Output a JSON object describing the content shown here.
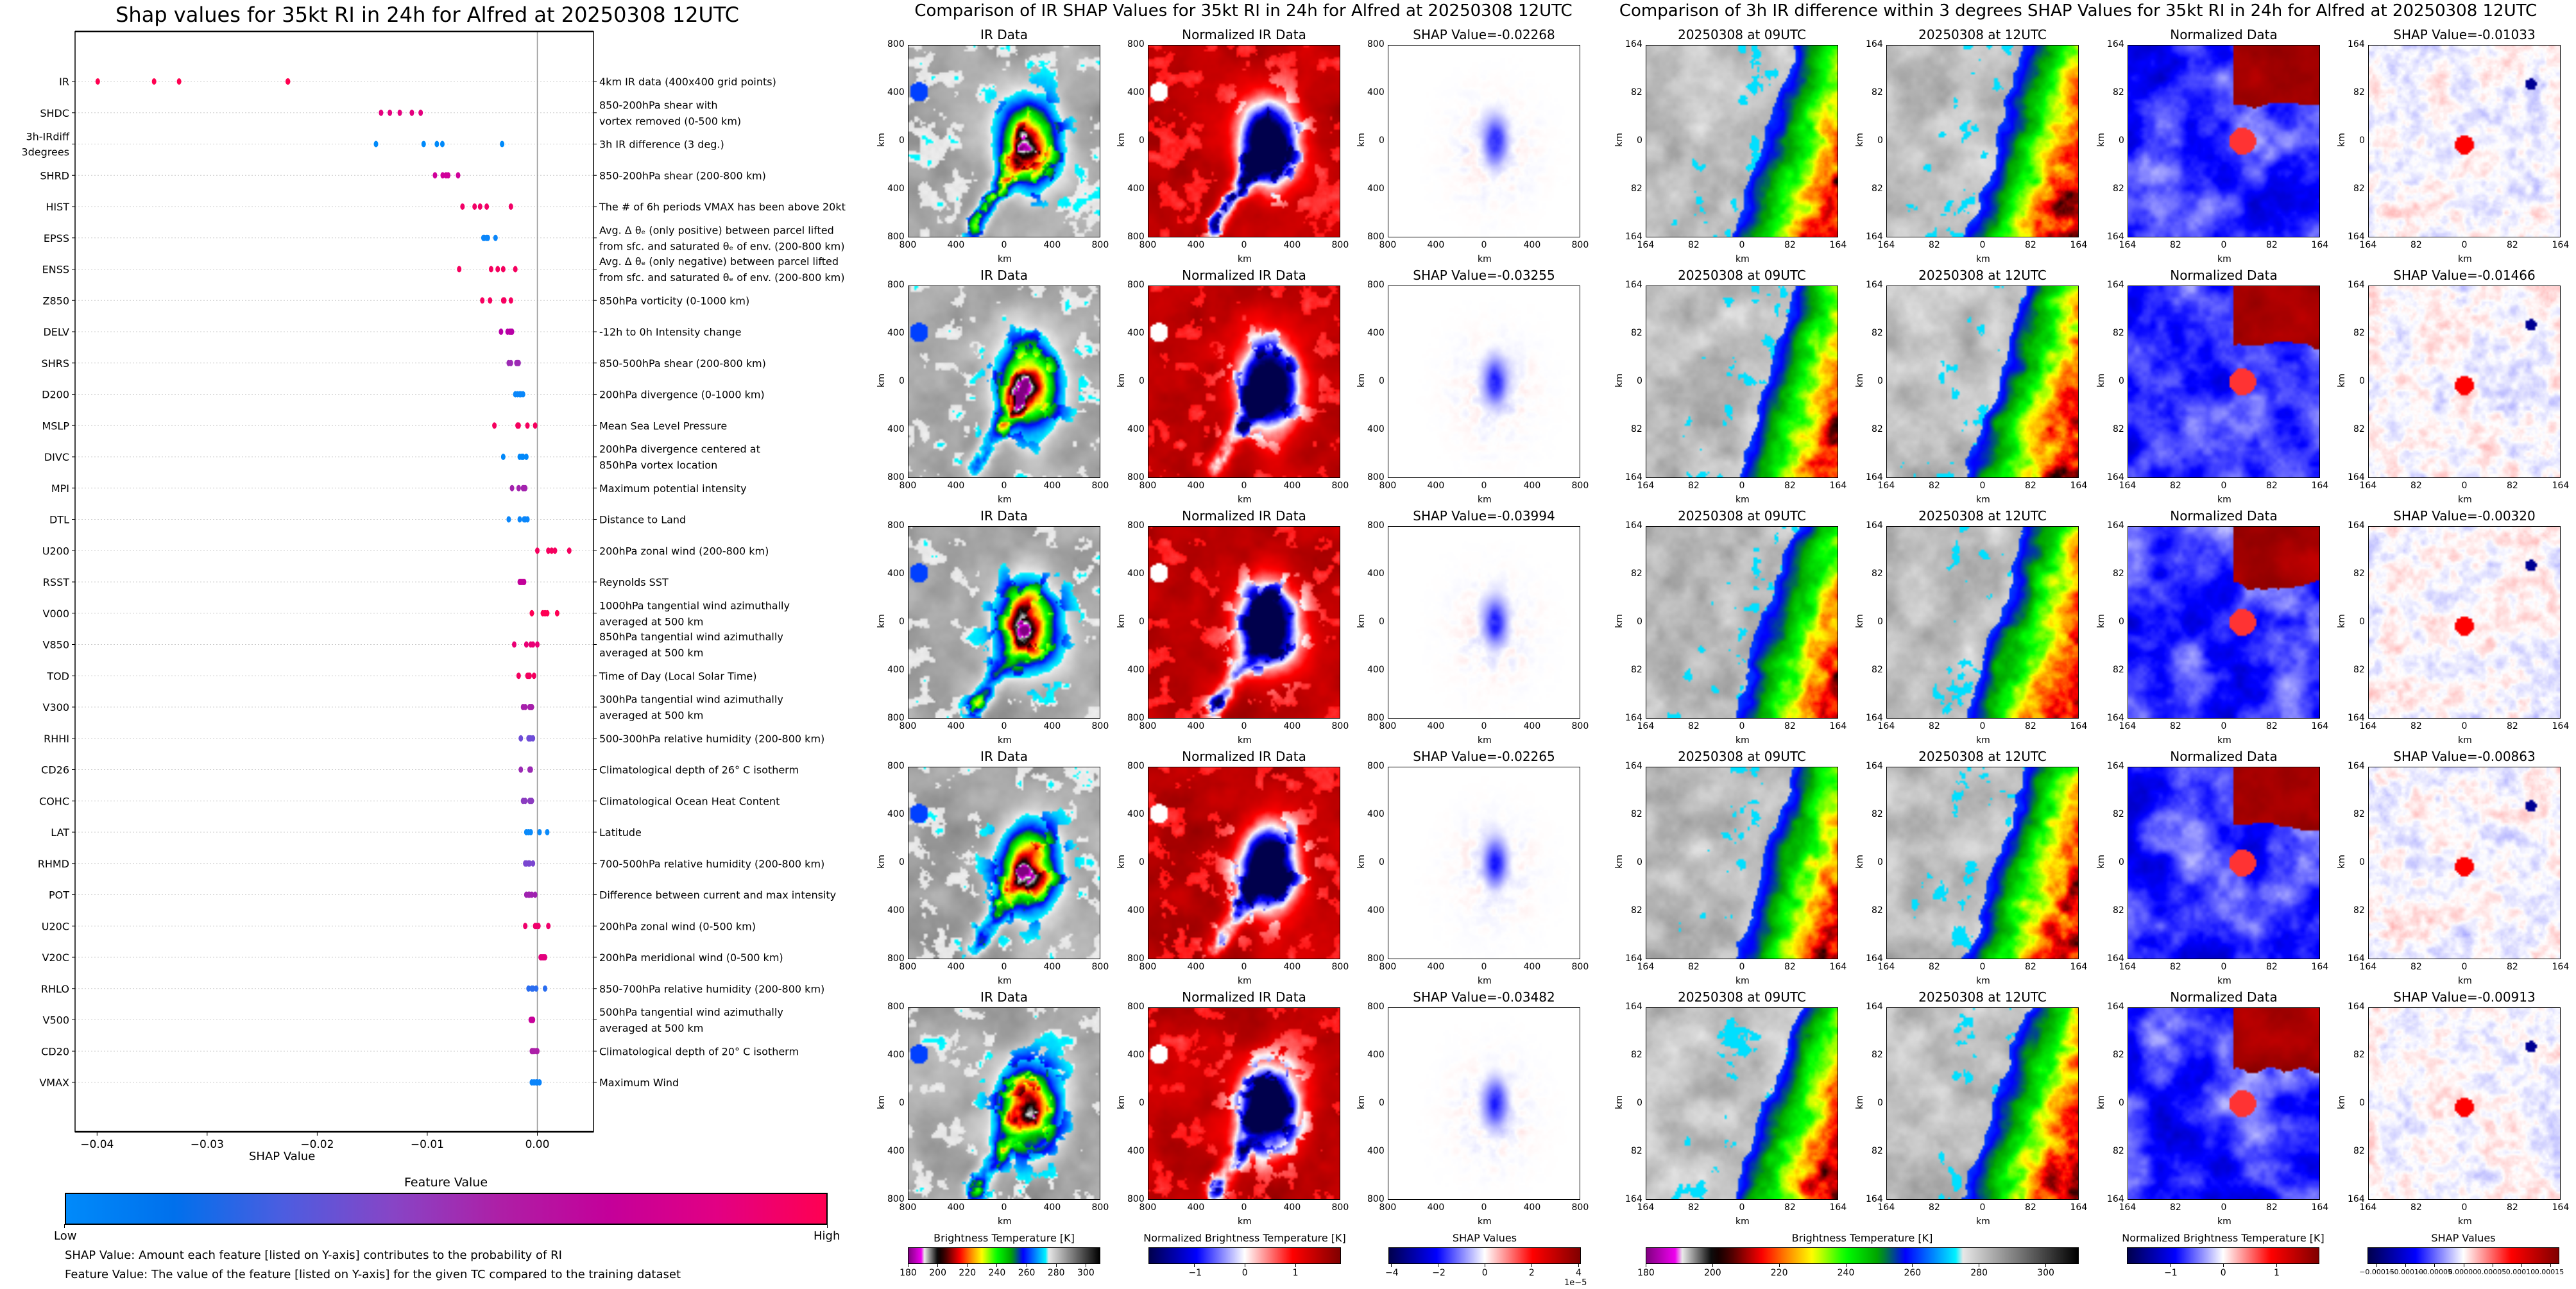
{
  "chart_data": {
    "type": "scatter",
    "title": "Shap values for 35kt RI in 24h for Alfred at 20250308 12UTC",
    "xlabel": "SHAP Value",
    "xlim": [
      -0.042,
      0.0051
    ],
    "xticks": [
      -0.04,
      -0.03,
      -0.02,
      -0.01,
      0.0
    ],
    "xtick_labels": [
      "−0.04",
      "−0.03",
      "−0.02",
      "−0.01",
      "0.00"
    ],
    "zero_line": 0.0,
    "grid": "dotted horizontal per feature",
    "features": [
      {
        "name": "IR",
        "description": [
          "4km IR data (400x400 grid points)"
        ],
        "color": "#ff0050",
        "shap_values": [
          -0.02268,
          -0.03255,
          -0.03994,
          -0.02265,
          -0.03482
        ]
      },
      {
        "name": "SHDC",
        "description": [
          "850-200hPa shear with",
          "vortex removed (0-500 km)"
        ],
        "color": "#e4007e",
        "shap_values": [
          -0.0142,
          -0.0134,
          -0.0125,
          -0.0114,
          -0.0106
        ]
      },
      {
        "name": "3h-IRdiff\n3degrees",
        "description": [
          "3h IR difference (3 deg.)"
        ],
        "color": "#008afa",
        "shap_values": [
          -0.01466,
          -0.01033,
          -0.00913,
          -0.00863,
          -0.0032
        ]
      },
      {
        "name": "SHRD",
        "description": [
          "850-200hPa shear (200-800 km)"
        ],
        "color": "#d0009a",
        "shap_values": [
          -0.0093,
          -0.0086,
          -0.0083,
          -0.0081,
          -0.0072
        ]
      },
      {
        "name": "HIST",
        "description": [
          "The # of 6h periods VMAX has been above 20kt"
        ],
        "color": "#f20066",
        "shap_values": [
          -0.0068,
          -0.0057,
          -0.0052,
          -0.0046,
          -0.0024
        ]
      },
      {
        "name": "EPSS",
        "description": [
          "Avg. Δ θₑ (only positive) between parcel lifted",
          "from sfc. and saturated θₑ of env. (200-800 km)"
        ],
        "color": "#0a86fa",
        "shap_values": [
          -0.0049,
          -0.0048,
          -0.0046,
          -0.0045,
          -0.0038
        ]
      },
      {
        "name": "ENSS",
        "description": [
          "Avg. Δ θₑ (only negative) between parcel lifted",
          "from sfc. and saturated θₑ of env. (200-800 km)"
        ],
        "color": "#f5005e",
        "shap_values": [
          -0.0071,
          -0.0042,
          -0.0036,
          -0.0031,
          -0.002
        ]
      },
      {
        "name": "Z850",
        "description": [
          "850hPa vorticity (0-1000 km)"
        ],
        "color": "#f70060",
        "shap_values": [
          -0.005,
          -0.0043,
          -0.0031,
          -0.003,
          -0.0024
        ]
      },
      {
        "name": "DELV",
        "description": [
          "-12h to 0h Intensity change"
        ],
        "color": "#b800a6",
        "shap_values": [
          -0.0033,
          -0.0027,
          -0.0025,
          -0.0024,
          -0.0023
        ]
      },
      {
        "name": "SHRS",
        "description": [
          "850-500hPa shear (200-800 km)"
        ],
        "color": "#9c2bb4",
        "shap_values": [
          -0.0026,
          -0.0024,
          -0.0019,
          -0.0018,
          -0.0017
        ]
      },
      {
        "name": "D200",
        "description": [
          "200hPa divergence (0-1000 km)"
        ],
        "color": "#0a87fa",
        "shap_values": [
          -0.002,
          -0.0018,
          -0.0016,
          -0.0015,
          -0.0013
        ]
      },
      {
        "name": "MSLP",
        "description": [
          "Mean Sea Level Pressure"
        ],
        "color": "#f5005e",
        "shap_values": [
          -0.0039,
          -0.0018,
          -0.0017,
          -0.0009,
          -0.0002
        ]
      },
      {
        "name": "DIVC",
        "description": [
          "200hPa divergence centered at",
          "850hPa vortex location"
        ],
        "color": "#0088fa",
        "shap_values": [
          -0.0031,
          -0.0016,
          -0.0014,
          -0.0013,
          -0.001
        ]
      },
      {
        "name": "MPI",
        "description": [
          "Maximum potential intensity"
        ],
        "color": "#a322ae",
        "shap_values": [
          -0.0023,
          -0.0017,
          -0.0013,
          -0.0012,
          -0.0011
        ]
      },
      {
        "name": "DTL",
        "description": [
          "Distance to Land"
        ],
        "color": "#0a86fa",
        "shap_values": [
          -0.0026,
          -0.0016,
          -0.0012,
          -0.0011,
          -0.0009
        ]
      },
      {
        "name": "U200",
        "description": [
          "200hPa zonal wind (200-800 km)"
        ],
        "color": "#f5005e",
        "shap_values": [
          0.0,
          0.001,
          0.0013,
          0.0016,
          0.0029
        ]
      },
      {
        "name": "RSST",
        "description": [
          "Reynolds SST"
        ],
        "color": "#c20099",
        "shap_values": [
          -0.0016,
          -0.0015,
          -0.0014,
          -0.0013,
          -0.0012
        ]
      },
      {
        "name": "V000",
        "description": [
          "1000hPa tangential wind azimuthally",
          "averaged at 500 km"
        ],
        "color": "#ff0054",
        "shap_values": [
          -0.0005,
          0.0005,
          0.0007,
          0.0009,
          0.0018
        ]
      },
      {
        "name": "V850",
        "description": [
          "850hPa tangential wind azimuthally",
          "averaged at 500 km"
        ],
        "color": "#ea0075",
        "shap_values": [
          -0.0021,
          -0.001,
          -0.0006,
          -0.0004,
          0.0
        ]
      },
      {
        "name": "TOD",
        "description": [
          "Time of Day (Local Solar Time)"
        ],
        "color": "#f3005f",
        "shap_values": [
          -0.0017,
          -0.0009,
          -0.0008,
          -0.0007,
          -0.0003
        ]
      },
      {
        "name": "V300",
        "description": [
          "300hPa tangential wind azimuthally",
          "averaged at 500 km"
        ],
        "color": "#a620ab",
        "shap_values": [
          -0.0013,
          -0.0011,
          -0.0007,
          -0.0006,
          -0.0005
        ]
      },
      {
        "name": "RHHI",
        "description": [
          "500-300hPa relative humidity (200-800 km)"
        ],
        "color": "#6e4dd8",
        "shap_values": [
          -0.0015,
          -0.0008,
          -0.0007,
          -0.0006,
          -0.0004
        ]
      },
      {
        "name": "CD26",
        "description": [
          "Climatological depth of 26° C isotherm"
        ],
        "color": "#9b2bb4",
        "shap_values": [
          -0.0015,
          -0.0007,
          -0.0007,
          -0.0006,
          -0.0006
        ]
      },
      {
        "name": "COHC",
        "description": [
          "Climatological Ocean Heat Content"
        ],
        "color": "#8b3cc0",
        "shap_values": [
          -0.0013,
          -0.0011,
          -0.0007,
          -0.0006,
          -0.0005
        ]
      },
      {
        "name": "LAT",
        "description": [
          "Latitude"
        ],
        "color": "#0a8afa",
        "shap_values": [
          -0.001,
          -0.0008,
          -0.0006,
          0.0002,
          0.0009
        ]
      },
      {
        "name": "RHMD",
        "description": [
          "700-500hPa relative humidity (200-800 km)"
        ],
        "color": "#7a46d0",
        "shap_values": [
          -0.0011,
          -0.001,
          -0.0008,
          -0.0007,
          -0.0004
        ]
      },
      {
        "name": "POT",
        "description": [
          "Difference between current and max intensity"
        ],
        "color": "#a022b0",
        "shap_values": [
          -0.001,
          -0.0008,
          -0.0007,
          -0.0005,
          -0.0002
        ]
      },
      {
        "name": "U20C",
        "description": [
          "200hPa zonal wind (0-500 km)"
        ],
        "color": "#ef006c",
        "shap_values": [
          -0.0011,
          -0.0002,
          -0.0001,
          0.0001,
          0.001
        ]
      },
      {
        "name": "V20C",
        "description": [
          "200hPa meridional wind (0-500 km)"
        ],
        "color": "#e3007d",
        "shap_values": [
          0.0003,
          0.0004,
          0.0005,
          0.0006,
          0.0007
        ]
      },
      {
        "name": "RHLO",
        "description": [
          "850-700hPa relative humidity (200-800 km)"
        ],
        "color": "#2a6df0",
        "shap_values": [
          -0.0008,
          -0.0005,
          -0.0004,
          -0.0001,
          0.0007
        ]
      },
      {
        "name": "V500",
        "description": [
          "500hPa tangential wind azimuthally",
          "averaged at 500 km"
        ],
        "color": "#c8009a",
        "shap_values": [
          -0.0006,
          -0.0005,
          -0.0005,
          -0.0004,
          -0.0004
        ]
      },
      {
        "name": "CD20",
        "description": [
          "Climatological depth of 20° C isotherm"
        ],
        "color": "#ac20a8",
        "shap_values": [
          -0.0005,
          -0.0004,
          -0.0003,
          -0.0001,
          0.0
        ]
      },
      {
        "name": "VMAX",
        "description": [
          "Maximum Wind"
        ],
        "color": "#0a84fa",
        "shap_values": [
          -0.0005,
          -0.0003,
          -0.0001,
          0.0,
          0.0002
        ]
      }
    ]
  },
  "feature_colorbar": {
    "title": "Feature Value",
    "low": "Low",
    "high": "High",
    "colors": [
      "#008afa",
      "#0070ec",
      "#4c5de0",
      "#8745c6",
      "#ae1fa6",
      "#c4009a",
      "#e20083",
      "#ff0052"
    ]
  },
  "notes": [
    "SHAP Value: Amount each feature [listed on Y-axis] contributes to the probability of RI",
    "Feature Value: The value of the feature [listed on Y-axis] for the given TC compared to the training dataset"
  ],
  "ir_comparison": {
    "title": "Comparison of IR SHAP Values for 35kt RI in 24h for Alfred at 20250308 12UTC",
    "panel_titles": [
      "IR Data",
      "Normalized IR Data"
    ],
    "shap_titles": [
      "SHAP Value=-0.02268",
      "SHAP Value=-0.03255",
      "SHAP Value=-0.03994",
      "SHAP Value=-0.02265",
      "SHAP Value=-0.03482"
    ],
    "ticks": [
      "800",
      "400",
      "0",
      "400",
      "800"
    ],
    "axis_label": "km",
    "colorbars": [
      {
        "title": "Brightness Temperature [K]",
        "ticks": [
          "180",
          "200",
          "220",
          "240",
          "260",
          "280",
          "300"
        ],
        "range": [
          180,
          310
        ]
      },
      {
        "title": "Normalized Brightness Temperature [K]",
        "ticks": [
          "−1",
          "0",
          "1"
        ],
        "range": [
          -1.9,
          1.9
        ]
      },
      {
        "title": "SHAP Values",
        "ticks": [
          "−4",
          "−2",
          "0",
          "2",
          "4"
        ],
        "range": [
          -4.1,
          4.1
        ],
        "offset": "1e−5"
      }
    ]
  },
  "ir3h_comparison": {
    "title": "Comparison of 3h IR difference within 3 degrees SHAP Values for 35kt RI in 24h for Alfred at 20250308 12UTC",
    "panel_titles": [
      "20250308 at 09UTC",
      "20250308 at 12UTC",
      "Normalized Data"
    ],
    "shap_titles": [
      "SHAP Value=-0.01033",
      "SHAP Value=-0.01466",
      "SHAP Value=-0.00320",
      "SHAP Value=-0.00863",
      "SHAP Value=-0.00913"
    ],
    "ticks": [
      "164",
      "82",
      "0",
      "82",
      "164"
    ],
    "axis_label": "km",
    "colorbars": [
      {
        "title": "Brightness Temperature [K]",
        "ticks": [
          "180",
          "200",
          "220",
          "240",
          "260",
          "280",
          "300"
        ],
        "range": [
          180,
          310
        ]
      },
      {
        "title": "Normalized Brightness Temperature [K]",
        "ticks": [
          "−1",
          "0",
          "1"
        ],
        "range": [
          -1.8,
          1.8
        ]
      },
      {
        "title": "SHAP Values",
        "ticks": [
          "−0.00015",
          "−0.00010",
          "−0.00005",
          "0.00000",
          "0.00005",
          "0.00010",
          "0.00015"
        ],
        "range": [
          -0.000166,
          0.000166
        ]
      }
    ]
  }
}
